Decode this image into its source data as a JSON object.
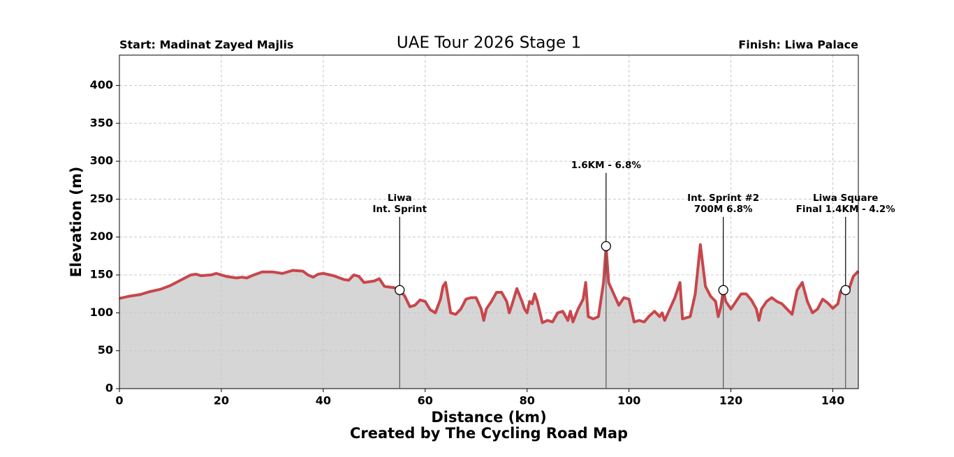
{
  "chart_data": {
    "type": "line",
    "title": "UAE Tour 2026 Stage 1",
    "start_label": "Start: Madinat Zayed Majlis",
    "finish_label": "Finish: Liwa Palace",
    "xlabel": "Distance (km)",
    "ylabel": "Elevation (m)",
    "footer": "Created by The Cycling Road Map",
    "xlim": [
      0,
      145
    ],
    "ylim": [
      0,
      440
    ],
    "xticks": [
      0,
      20,
      40,
      60,
      80,
      100,
      120,
      140
    ],
    "yticks": [
      0,
      50,
      100,
      150,
      200,
      250,
      300,
      350,
      400
    ],
    "grid": true,
    "fill_color": "#d6d6d6",
    "series": [
      {
        "name": "Elevation",
        "color": "#c8464b",
        "x": [
          0,
          2,
          4,
          6,
          8,
          10,
          12,
          14,
          15,
          16,
          18,
          19,
          20,
          21,
          23,
          24,
          25,
          26,
          28,
          30,
          32,
          34,
          36,
          37,
          38,
          39,
          40,
          42,
          44,
          45,
          46,
          47,
          48,
          50,
          51,
          52,
          54,
          55,
          56,
          57,
          58,
          59,
          60,
          61,
          62,
          63,
          63.5,
          64,
          65,
          66,
          67,
          68,
          69,
          70,
          71,
          71.5,
          72,
          73,
          74,
          75,
          76,
          76.5,
          77,
          78,
          79,
          79.5,
          80,
          80.5,
          81,
          81.5,
          82,
          83,
          84,
          85,
          86,
          87,
          88,
          88.5,
          89,
          90,
          91,
          91.5,
          92,
          93,
          94,
          95,
          95.5,
          96,
          97,
          98,
          99,
          100,
          101,
          102,
          103,
          104,
          105,
          106,
          106.5,
          107,
          108,
          109,
          110,
          110.5,
          112,
          113,
          114,
          115,
          116,
          117,
          117.5,
          118,
          118.5,
          119,
          120,
          121,
          122,
          123,
          124,
          125,
          125.5,
          126,
          127,
          128,
          129,
          130,
          131,
          132,
          133,
          134,
          135,
          136,
          137,
          138,
          139,
          140,
          141,
          141.5,
          142,
          142.5,
          143,
          144,
          145
        ],
        "values": [
          119,
          122,
          124,
          128,
          131,
          136,
          143,
          150,
          151,
          149,
          150,
          152,
          150,
          148,
          146,
          147,
          146,
          149,
          154,
          154,
          152,
          156,
          155,
          150,
          147,
          151,
          152,
          149,
          144,
          143,
          150,
          148,
          140,
          142,
          145,
          135,
          133,
          130,
          122,
          108,
          110,
          117,
          115,
          104,
          100,
          118,
          135,
          140,
          100,
          98,
          105,
          118,
          120,
          120,
          105,
          90,
          105,
          115,
          127,
          127,
          115,
          100,
          110,
          132,
          115,
          105,
          100,
          115,
          112,
          125,
          115,
          87,
          90,
          88,
          100,
          102,
          90,
          102,
          88,
          105,
          118,
          140,
          95,
          92,
          95,
          140,
          188,
          140,
          125,
          110,
          120,
          118,
          88,
          90,
          88,
          96,
          102,
          95,
          100,
          90,
          105,
          120,
          140,
          92,
          95,
          125,
          190,
          135,
          122,
          115,
          95,
          107,
          130,
          115,
          105,
          115,
          125,
          125,
          117,
          105,
          90,
          105,
          115,
          120,
          115,
          112,
          105,
          98,
          130,
          140,
          115,
          100,
          105,
          118,
          113,
          106,
          112,
          128,
          133,
          130,
          128,
          148,
          155
        ]
      }
    ],
    "annotations": [
      {
        "x": 55,
        "y": 130,
        "lines": [
          "Liwa",
          "Int. Sprint"
        ]
      },
      {
        "x": 95.5,
        "y": 188,
        "lines": [
          "1.6KM - 6.8%"
        ]
      },
      {
        "x": 118.5,
        "y": 130,
        "lines": [
          "Int. Sprint #2",
          "700M 6.8%"
        ]
      },
      {
        "x": 142.5,
        "y": 130,
        "lines": [
          "Liwa Square",
          "Final 1.4KM - 4.2%"
        ]
      }
    ]
  }
}
